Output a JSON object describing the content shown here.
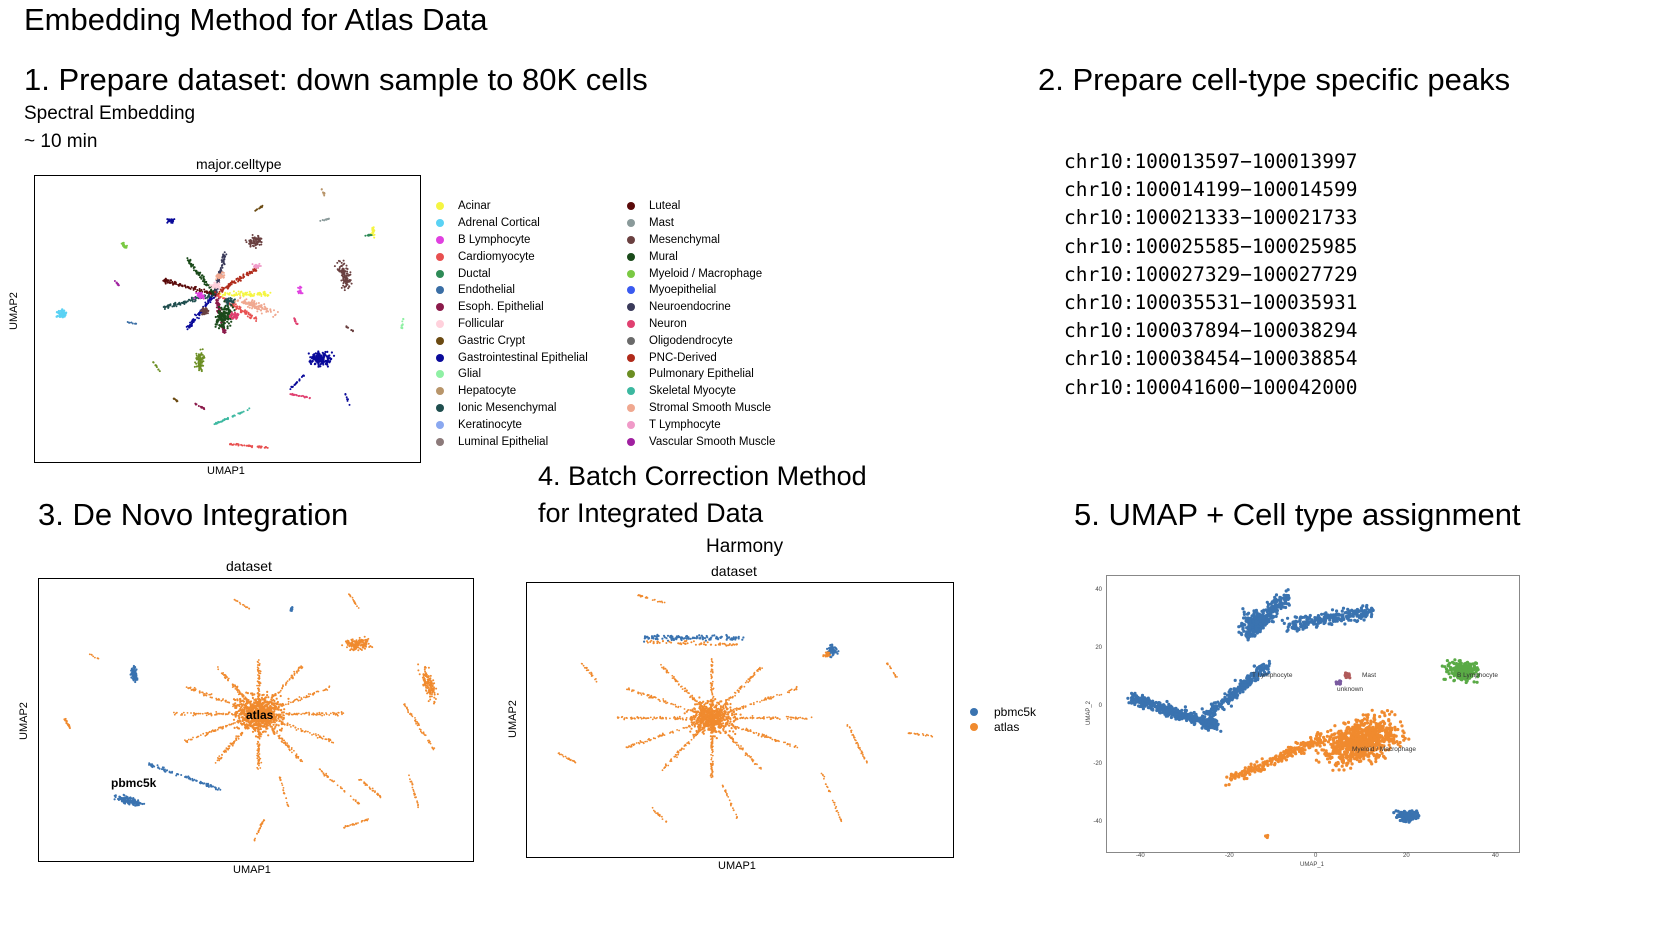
{
  "title": "Embedding Method for Atlas Data",
  "step1": {
    "heading": "1. Prepare dataset: down sample to 80K cells",
    "method": "Spectral Embedding",
    "time": "~ 10 min",
    "plot": {
      "title": "major.celltype",
      "xlabel": "UMAP1",
      "ylabel": "UMAP2",
      "legend_col1": [
        {
          "label": "Acinar",
          "color": "#f5f542"
        },
        {
          "label": "Adrenal Cortical",
          "color": "#5ad2f4"
        },
        {
          "label": "B Lymphocyte",
          "color": "#e040e0"
        },
        {
          "label": "Cardiomyocyte",
          "color": "#e85050"
        },
        {
          "label": "Ductal",
          "color": "#2e8b57"
        },
        {
          "label": "Endothelial",
          "color": "#3a6ea5"
        },
        {
          "label": "Esoph. Epithelial",
          "color": "#8b1a4a"
        },
        {
          "label": "Follicular",
          "color": "#ffd1dc"
        },
        {
          "label": "Gastric Crypt",
          "color": "#6b4a12"
        },
        {
          "label": "Gastrointestinal Epithelial",
          "color": "#0a0a9a"
        },
        {
          "label": "Glial",
          "color": "#8ff0a4"
        },
        {
          "label": "Hepatocyte",
          "color": "#b8956a"
        },
        {
          "label": "Ionic Mesenchymal",
          "color": "#1f4e4e"
        },
        {
          "label": "Keratinocyte",
          "color": "#8aa8f0"
        },
        {
          "label": "Luminal Epithelial",
          "color": "#8c7a7a"
        }
      ],
      "legend_col2": [
        {
          "label": "Luteal",
          "color": "#5a0a0a"
        },
        {
          "label": "Mast",
          "color": "#8a9a9a"
        },
        {
          "label": "Mesenchymal",
          "color": "#6a4040"
        },
        {
          "label": "Mural",
          "color": "#1a4a1a"
        },
        {
          "label": "Myeloid / Macrophage",
          "color": "#7ac943"
        },
        {
          "label": "Myoepithelial",
          "color": "#3a5af0"
        },
        {
          "label": "Neuroendocrine",
          "color": "#3a3a5a"
        },
        {
          "label": "Neuron",
          "color": "#e04070"
        },
        {
          "label": "Oligodendrocyte",
          "color": "#6a6a6a"
        },
        {
          "label": "PNC-Derived",
          "color": "#b02a1a"
        },
        {
          "label": "Pulmonary Epithelial",
          "color": "#6b8e23"
        },
        {
          "label": "Skeletal Myocyte",
          "color": "#3cb8a0"
        },
        {
          "label": "Stromal Smooth Muscle",
          "color": "#f0a890"
        },
        {
          "label": "T Lymphocyte",
          "color": "#f09ac8"
        },
        {
          "label": "Vascular Smooth Muscle",
          "color": "#a020a0"
        }
      ]
    }
  },
  "step2": {
    "heading": "2. Prepare cell-type specific peaks",
    "peaks": [
      "chr10:100013597−100013997",
      "chr10:100014199−100014599",
      "chr10:100021333−100021733",
      "chr10:100025585−100025985",
      "chr10:100027329−100027729",
      "chr10:100035531−100035931",
      "chr10:100037894−100038294",
      "chr10:100038454−100038854",
      "chr10:100041600−100042000"
    ]
  },
  "step3": {
    "heading": "3. De Novo Integration",
    "plot": {
      "title": "dataset",
      "xlabel": "UMAP1",
      "ylabel": "UMAP2",
      "annotations": [
        "atlas",
        "pbmc5k"
      ]
    }
  },
  "step4": {
    "heading_line1": "4. Batch Correction Method",
    "heading_line2": "for Integrated Data",
    "method": "Harmony",
    "plot": {
      "title": "dataset",
      "xlabel": "UMAP1",
      "ylabel": "UMAP2",
      "legend": [
        {
          "label": "pbmc5k",
          "color": "#3a73b0"
        },
        {
          "label": "atlas",
          "color": "#f08a2e"
        }
      ]
    }
  },
  "step5": {
    "heading": "5. UMAP + Cell type assignment",
    "plot": {
      "xlabel": "UMAP_1",
      "ylabel": "UMAP_2",
      "xticks": [
        "-40",
        "-20",
        "0",
        "20",
        "40"
      ],
      "yticks": [
        "40",
        "20",
        "0",
        "-20",
        "-40"
      ],
      "annotations": [
        "T Lymphocyte",
        "Mast",
        "unknown",
        "B Lymphocyte",
        "Myeloid / Macrophage"
      ]
    }
  },
  "colors": {
    "pbmc5k": "#3a73b0",
    "atlas": "#f08a2e",
    "b_cells": "#5aaa46"
  }
}
